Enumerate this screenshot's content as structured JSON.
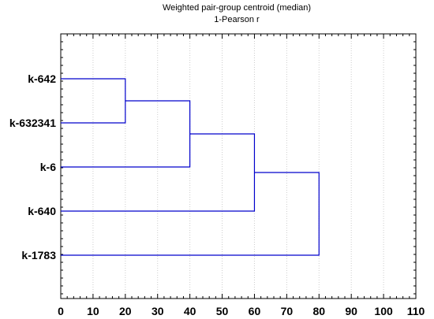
{
  "chart_data": {
    "type": "dendrogram",
    "title": "Weighted pair-group centroid (median)",
    "subtitle": "1-Pearson r",
    "xlim": [
      0,
      110
    ],
    "x_ticks": [
      0,
      10,
      20,
      30,
      40,
      50,
      60,
      70,
      80,
      90,
      100,
      110
    ],
    "grid": "vertical-dotted",
    "line_color": "#0000cc",
    "leaves": [
      "k-642",
      "k-632341",
      "k-6",
      "k-640",
      "k-1783"
    ],
    "merges": [
      {
        "left": "k-642",
        "right": "k-632341",
        "height": 20
      },
      {
        "left": "c0",
        "right": "k-6",
        "height": 40
      },
      {
        "left": "c1",
        "right": "k-640",
        "height": 60
      },
      {
        "left": "c2",
        "right": "k-1783",
        "height": 80
      }
    ]
  }
}
